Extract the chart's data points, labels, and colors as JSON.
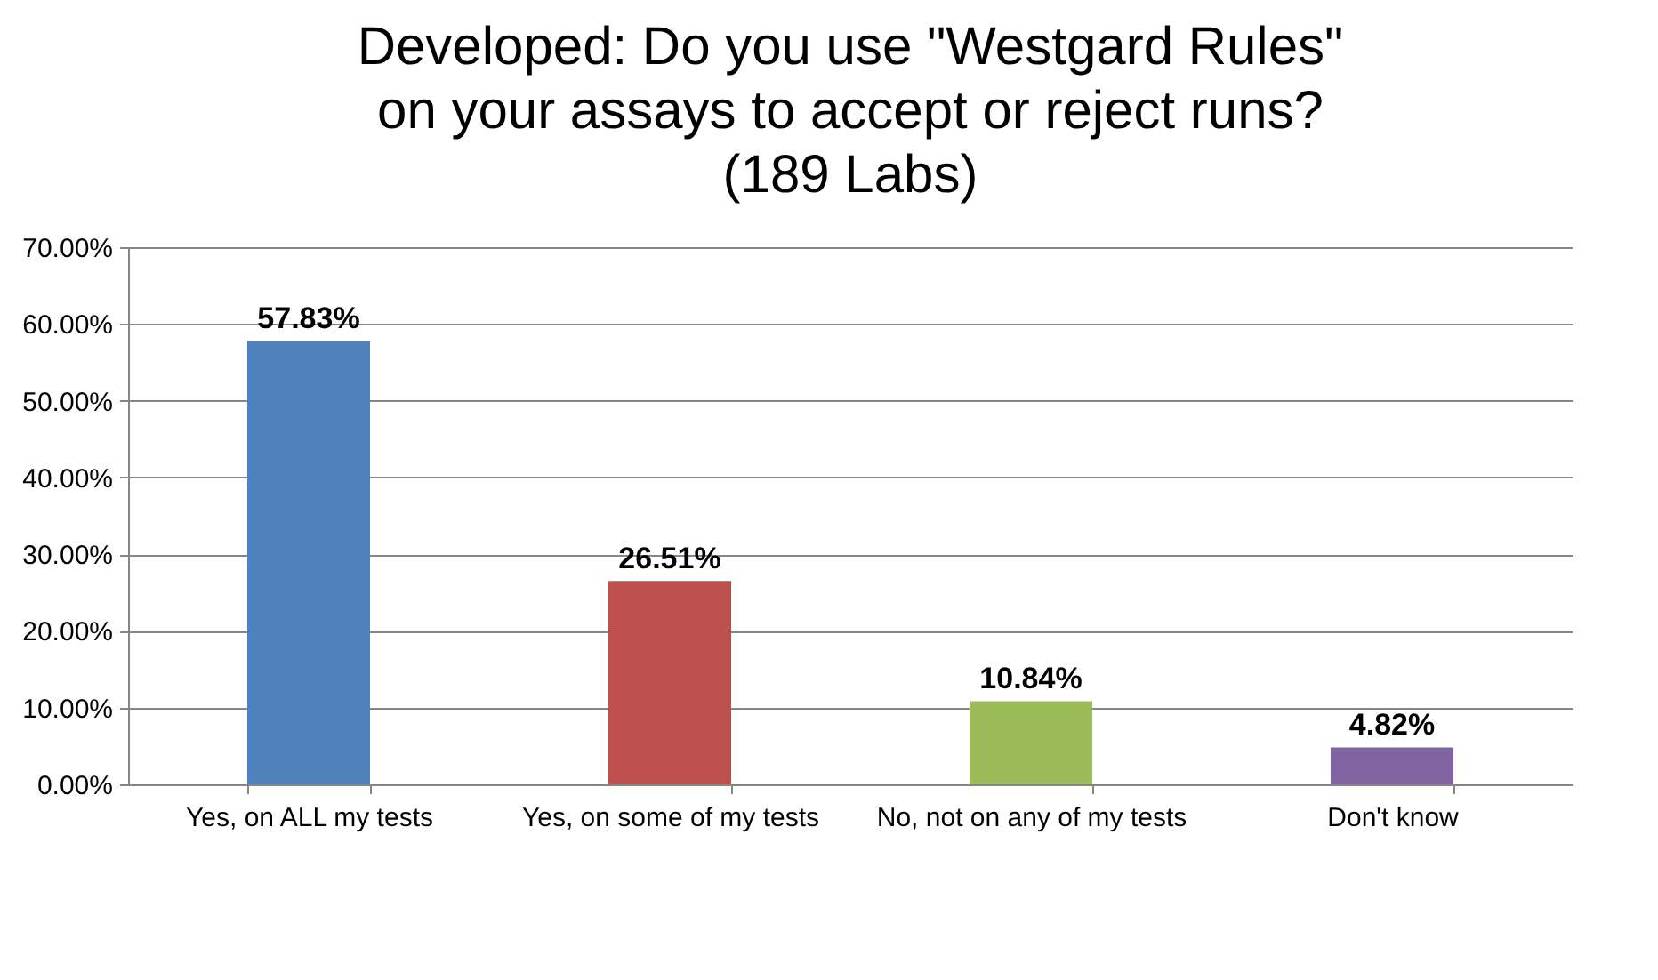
{
  "chart_data": {
    "type": "bar",
    "title": "Developed: Do you use \"Westgard Rules\" on your assays to accept or reject runs? (189 Labs)",
    "categories": [
      "Yes, on ALL my tests",
      "Yes, on  some of my tests",
      "No, not on any of my tests",
      "Don't know"
    ],
    "values": [
      57.83,
      26.51,
      10.84,
      4.82
    ],
    "colors": [
      "#4f81bd",
      "#c0504d",
      "#9bbb59",
      "#8064a2"
    ],
    "value_labels": [
      "57.83%",
      "26.51%",
      "10.84%",
      "4.82%"
    ],
    "ylim": [
      0,
      70
    ],
    "yticks": [
      {
        "value": 0,
        "label": "0.00%"
      },
      {
        "value": 10,
        "label": "10.00%"
      },
      {
        "value": 20,
        "label": "20.00%"
      },
      {
        "value": 30,
        "label": "30.00%"
      },
      {
        "value": 40,
        "label": "40.00%"
      },
      {
        "value": 50,
        "label": "50.00%"
      },
      {
        "value": 60,
        "label": "60.00%"
      },
      {
        "value": 70,
        "label": "70.00%"
      }
    ],
    "grid": true
  }
}
